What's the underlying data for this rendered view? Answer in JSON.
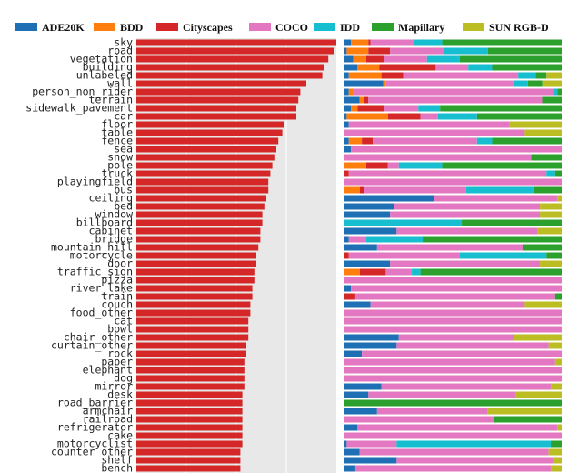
{
  "chart_data": {
    "type": "bar",
    "subtype": "horizontal bar + 100% stacked horizontal bar",
    "legend": [
      {
        "name": "ADE20K",
        "color": "#1f6fb4"
      },
      {
        "name": "BDD",
        "color": "#ff7f0e"
      },
      {
        "name": "Cityscapes",
        "color": "#d62728"
      },
      {
        "name": "COCO",
        "color": "#e377c2"
      },
      {
        "name": "IDD",
        "color": "#17becf"
      },
      {
        "name": "Mapillary",
        "color": "#2ca02c"
      },
      {
        "name": "SUN RGB-D",
        "color": "#bcbd22"
      }
    ],
    "categories": [
      "sky",
      "road",
      "vegetation",
      "building",
      "unlabeled",
      "wall",
      "person_non_rider",
      "terrain",
      "sidewalk_pavement",
      "car",
      "floor",
      "table",
      "fence",
      "sea",
      "snow",
      "pole",
      "truck",
      "playingfield",
      "bus",
      "ceiling",
      "bed",
      "window",
      "billboard",
      "cabinet",
      "bridge",
      "mountain_hill",
      "motorcycle",
      "door",
      "traffic_sign",
      "pizza",
      "river_lake",
      "train",
      "couch",
      "food_other",
      "cat",
      "bowl",
      "chair_other",
      "curtain_other",
      "rock",
      "paper",
      "elephant",
      "dog",
      "mirror",
      "desk",
      "road_barrier",
      "armchair",
      "railroad",
      "refrigerator",
      "cake",
      "motorcyclist",
      "counter_other",
      "shelf",
      "bench"
    ],
    "left_values": [
      100,
      99,
      96,
      94,
      93,
      85,
      82,
      81,
      80,
      80,
      74,
      73,
      71,
      70,
      69,
      68,
      67,
      66,
      66,
      65,
      64,
      63,
      63,
      62,
      62,
      61,
      60,
      60,
      59,
      59,
      58,
      58,
      57,
      57,
      56,
      56,
      56,
      55,
      55,
      54,
      54,
      54,
      54,
      53,
      53,
      53,
      53,
      53,
      53,
      53,
      52,
      52,
      52
    ],
    "left_xlim": [
      0,
      100
    ],
    "right_xlim": [
      0,
      100
    ],
    "series_share": [
      [
        3,
        8,
        1,
        20,
        13,
        55,
        0
      ],
      [
        1,
        10,
        10,
        25,
        20,
        34,
        0
      ],
      [
        4,
        6,
        8,
        20,
        15,
        47,
        0
      ],
      [
        6,
        10,
        26,
        15,
        11,
        32,
        0
      ],
      [
        2,
        15,
        10,
        53,
        8,
        5,
        7
      ],
      [
        16,
        1,
        0,
        53,
        6,
        6,
        8
      ],
      [
        2,
        2,
        0,
        92,
        2,
        2,
        0
      ],
      [
        7,
        2,
        2,
        80,
        0,
        9,
        0
      ],
      [
        3,
        3,
        12,
        16,
        10,
        56,
        0
      ],
      [
        1,
        19,
        15,
        8,
        18,
        39,
        0
      ],
      [
        2,
        0,
        0,
        74,
        0,
        0,
        24
      ],
      [
        0,
        0,
        0,
        83,
        0,
        0,
        17
      ],
      [
        2,
        6,
        5,
        48,
        7,
        32,
        0
      ],
      [
        3,
        0,
        0,
        97,
        0,
        0,
        0
      ],
      [
        0,
        0,
        0,
        86,
        0,
        14,
        0
      ],
      [
        0,
        10,
        10,
        5,
        20,
        55,
        0
      ],
      [
        0,
        0,
        2,
        91,
        4,
        3,
        0
      ],
      [
        0,
        0,
        0,
        100,
        0,
        0,
        0
      ],
      [
        0,
        7,
        2,
        47,
        31,
        13,
        0
      ],
      [
        41,
        0,
        0,
        57,
        0,
        0,
        2
      ],
      [
        23,
        0,
        0,
        67,
        0,
        0,
        10
      ],
      [
        21,
        0,
        0,
        69,
        0,
        0,
        10
      ],
      [
        0,
        0,
        0,
        0,
        54,
        46,
        0
      ],
      [
        24,
        0,
        0,
        65,
        0,
        0,
        11
      ],
      [
        2,
        0,
        0,
        8,
        26,
        64,
        0
      ],
      [
        15,
        0,
        0,
        67,
        0,
        18,
        0
      ],
      [
        0,
        0,
        2,
        51,
        40,
        7,
        0
      ],
      [
        21,
        0,
        0,
        69,
        0,
        0,
        10
      ],
      [
        0,
        7,
        12,
        12,
        4,
        65,
        0
      ],
      [
        0,
        0,
        0,
        100,
        0,
        0,
        0
      ],
      [
        3,
        0,
        0,
        97,
        0,
        0,
        0
      ],
      [
        0,
        0,
        5,
        92,
        0,
        3,
        0
      ],
      [
        12,
        0,
        0,
        71,
        0,
        0,
        17
      ],
      [
        0,
        0,
        0,
        100,
        0,
        0,
        0
      ],
      [
        0,
        0,
        0,
        100,
        0,
        0,
        0
      ],
      [
        0,
        0,
        0,
        100,
        0,
        0,
        0
      ],
      [
        25,
        0,
        0,
        53,
        0,
        0,
        22
      ],
      [
        24,
        0,
        0,
        70,
        0,
        0,
        6
      ],
      [
        8,
        0,
        0,
        92,
        0,
        0,
        0
      ],
      [
        0,
        0,
        0,
        97,
        0,
        0,
        3
      ],
      [
        0,
        0,
        0,
        100,
        0,
        0,
        0
      ],
      [
        0,
        0,
        0,
        100,
        0,
        0,
        0
      ],
      [
        17,
        0,
        0,
        78,
        0,
        0,
        5
      ],
      [
        11,
        0,
        0,
        68,
        0,
        0,
        21
      ],
      [
        0,
        0,
        0,
        0,
        0,
        100,
        0
      ],
      [
        15,
        0,
        0,
        51,
        0,
        0,
        34
      ],
      [
        0,
        0,
        0,
        69,
        0,
        31,
        0
      ],
      [
        6,
        0,
        0,
        92,
        0,
        0,
        2
      ],
      [
        0,
        0,
        0,
        100,
        0,
        0,
        0
      ],
      [
        1,
        0,
        0,
        23,
        71,
        5,
        0
      ],
      [
        7,
        0,
        0,
        87,
        0,
        0,
        6
      ],
      [
        24,
        0,
        0,
        72,
        0,
        0,
        4
      ],
      [
        5,
        0,
        0,
        90,
        0,
        0,
        5
      ]
    ]
  }
}
